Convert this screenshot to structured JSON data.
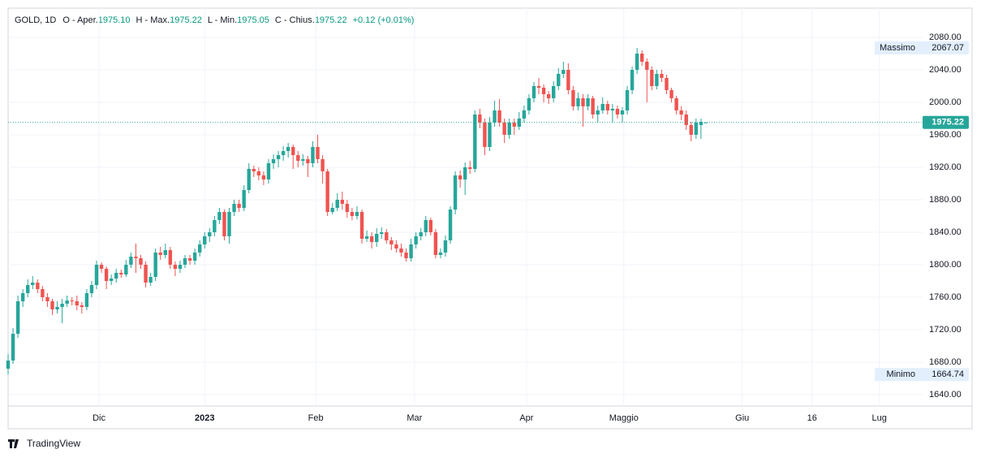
{
  "header": {
    "symbol": "GOLD, 1D",
    "open_label": "O - Aper.",
    "open": "1975.10",
    "high_label": "H - Max.",
    "high": "1975.22",
    "low_label": "L - Min.",
    "low": "1975.05",
    "close_label": "C - Chius.",
    "close": "1975.22",
    "change": "+0.12 (+0.01%)"
  },
  "footer": {
    "brand": "TradingView"
  },
  "chart_data": {
    "type": "candlestick",
    "up_color": "#26a69a",
    "down_color": "#ef5350",
    "xlim": [
      0,
      186.1
    ],
    "ylim": [
      1626,
      2116
    ],
    "xticks": [
      {
        "value": 18.5,
        "label": "Dic"
      },
      {
        "value": 40.0,
        "label": "2023"
      },
      {
        "value": 62.6,
        "label": "Feb"
      },
      {
        "value": 82.7,
        "label": "Mar"
      },
      {
        "value": 105.5,
        "label": "Apr"
      },
      {
        "value": 125.3,
        "label": "Maggio"
      },
      {
        "value": 149.4,
        "label": "Giu"
      },
      {
        "value": 163.6,
        "label": "16"
      },
      {
        "value": 177.3,
        "label": "Lug"
      }
    ],
    "yticks": [
      {
        "value": 1640,
        "label": "1640.00"
      },
      {
        "value": 1680,
        "label": "1680.00"
      },
      {
        "value": 1720,
        "label": "1720.00"
      },
      {
        "value": 1760,
        "label": "1760.00"
      },
      {
        "value": 1800,
        "label": "1800.00"
      },
      {
        "value": 1840,
        "label": "1840.00"
      },
      {
        "value": 1880,
        "label": "1880.00"
      },
      {
        "value": 1920,
        "label": "1920.00"
      },
      {
        "value": 1960,
        "label": "1960.00"
      },
      {
        "value": 2000,
        "label": "2000.00"
      },
      {
        "value": 2040,
        "label": "2040.00"
      },
      {
        "value": 2080,
        "label": "2080.00"
      }
    ],
    "grid": true,
    "high_marker": {
      "label": "Massimo",
      "value": "2067.07"
    },
    "low_marker": {
      "label": "Minimo",
      "value": "1664.74"
    },
    "last_price": "1975.22",
    "ohlc": [
      [
        1672,
        1690,
        1664.74,
        1682
      ],
      [
        1682,
        1722,
        1678,
        1715
      ],
      [
        1715,
        1762,
        1710,
        1755
      ],
      [
        1755,
        1770,
        1748,
        1765
      ],
      [
        1765,
        1782,
        1760,
        1775
      ],
      [
        1775,
        1786,
        1770,
        1778
      ],
      [
        1778,
        1782,
        1765,
        1770
      ],
      [
        1770,
        1774,
        1755,
        1760
      ],
      [
        1760,
        1765,
        1748,
        1755
      ],
      [
        1755,
        1758,
        1738,
        1745
      ],
      [
        1745,
        1755,
        1740,
        1748
      ],
      [
        1748,
        1758,
        1728,
        1752
      ],
      [
        1752,
        1762,
        1748,
        1756
      ],
      [
        1756,
        1760,
        1750,
        1755
      ],
      [
        1755,
        1762,
        1744,
        1750
      ],
      [
        1750,
        1754,
        1740,
        1748
      ],
      [
        1748,
        1770,
        1744,
        1765
      ],
      [
        1765,
        1780,
        1760,
        1775
      ],
      [
        1775,
        1805,
        1770,
        1800
      ],
      [
        1800,
        1803,
        1790,
        1795
      ],
      [
        1795,
        1798,
        1770,
        1780
      ],
      [
        1780,
        1788,
        1775,
        1783
      ],
      [
        1783,
        1795,
        1778,
        1790
      ],
      [
        1790,
        1794,
        1784,
        1788
      ],
      [
        1788,
        1806,
        1785,
        1800
      ],
      [
        1800,
        1815,
        1796,
        1810
      ],
      [
        1810,
        1826,
        1790,
        1808
      ],
      [
        1808,
        1812,
        1795,
        1800
      ],
      [
        1800,
        1804,
        1772,
        1778
      ],
      [
        1778,
        1790,
        1774,
        1785
      ],
      [
        1785,
        1820,
        1780,
        1815
      ],
      [
        1815,
        1822,
        1806,
        1812
      ],
      [
        1812,
        1826,
        1808,
        1818
      ],
      [
        1818,
        1822,
        1795,
        1800
      ],
      [
        1800,
        1804,
        1786,
        1795
      ],
      [
        1795,
        1805,
        1790,
        1800
      ],
      [
        1800,
        1812,
        1796,
        1808
      ],
      [
        1808,
        1812,
        1800,
        1805
      ],
      [
        1805,
        1820,
        1800,
        1815
      ],
      [
        1815,
        1830,
        1810,
        1825
      ],
      [
        1825,
        1840,
        1820,
        1835
      ],
      [
        1835,
        1845,
        1828,
        1840
      ],
      [
        1840,
        1860,
        1835,
        1855
      ],
      [
        1855,
        1870,
        1850,
        1865
      ],
      [
        1865,
        1868,
        1830,
        1835
      ],
      [
        1835,
        1870,
        1826,
        1865
      ],
      [
        1865,
        1880,
        1860,
        1875
      ],
      [
        1875,
        1880,
        1865,
        1870
      ],
      [
        1870,
        1898,
        1866,
        1892
      ],
      [
        1892,
        1925,
        1888,
        1918
      ],
      [
        1918,
        1922,
        1908,
        1915
      ],
      [
        1915,
        1920,
        1904,
        1910
      ],
      [
        1910,
        1915,
        1898,
        1905
      ],
      [
        1905,
        1930,
        1900,
        1925
      ],
      [
        1925,
        1936,
        1918,
        1930
      ],
      [
        1930,
        1940,
        1920,
        1935
      ],
      [
        1935,
        1946,
        1928,
        1940
      ],
      [
        1940,
        1950,
        1932,
        1945
      ],
      [
        1945,
        1948,
        1918,
        1935
      ],
      [
        1935,
        1940,
        1920,
        1928
      ],
      [
        1928,
        1936,
        1922,
        1930
      ],
      [
        1930,
        1934,
        1908,
        1925
      ],
      [
        1925,
        1952,
        1920,
        1945
      ],
      [
        1945,
        1960,
        1925,
        1930
      ],
      [
        1930,
        1935,
        1900,
        1915
      ],
      [
        1915,
        1918,
        1860,
        1865
      ],
      [
        1865,
        1876,
        1862,
        1870
      ],
      [
        1870,
        1888,
        1866,
        1880
      ],
      [
        1880,
        1890,
        1868,
        1875
      ],
      [
        1875,
        1880,
        1858,
        1865
      ],
      [
        1865,
        1870,
        1855,
        1860
      ],
      [
        1860,
        1872,
        1856,
        1865
      ],
      [
        1865,
        1868,
        1826,
        1832
      ],
      [
        1832,
        1842,
        1828,
        1835
      ],
      [
        1835,
        1840,
        1820,
        1828
      ],
      [
        1828,
        1845,
        1822,
        1838
      ],
      [
        1838,
        1846,
        1832,
        1840
      ],
      [
        1840,
        1844,
        1826,
        1830
      ],
      [
        1830,
        1834,
        1818,
        1825
      ],
      [
        1825,
        1830,
        1815,
        1820
      ],
      [
        1820,
        1826,
        1810,
        1815
      ],
      [
        1815,
        1820,
        1804,
        1808
      ],
      [
        1808,
        1832,
        1804,
        1825
      ],
      [
        1825,
        1840,
        1820,
        1835
      ],
      [
        1835,
        1845,
        1830,
        1840
      ],
      [
        1840,
        1860,
        1835,
        1855
      ],
      [
        1855,
        1858,
        1836,
        1840
      ],
      [
        1840,
        1844,
        1808,
        1812
      ],
      [
        1812,
        1820,
        1808,
        1815
      ],
      [
        1815,
        1836,
        1810,
        1830
      ],
      [
        1830,
        1872,
        1826,
        1868
      ],
      [
        1868,
        1915,
        1862,
        1910
      ],
      [
        1910,
        1916,
        1895,
        1905
      ],
      [
        1905,
        1926,
        1886,
        1920
      ],
      [
        1920,
        1928,
        1912,
        1918
      ],
      [
        1918,
        1990,
        1914,
        1985
      ],
      [
        1985,
        1992,
        1968,
        1975
      ],
      [
        1975,
        1980,
        1935,
        1945
      ],
      [
        1945,
        1982,
        1940,
        1975
      ],
      [
        1975,
        2002,
        1970,
        1990
      ],
      [
        1990,
        2004,
        1970,
        1975
      ],
      [
        1975,
        1980,
        1950,
        1960
      ],
      [
        1960,
        1980,
        1955,
        1975
      ],
      [
        1975,
        1980,
        1960,
        1970
      ],
      [
        1970,
        1988,
        1966,
        1980
      ],
      [
        1980,
        1996,
        1975,
        1990
      ],
      [
        1990,
        2010,
        1985,
        2005
      ],
      [
        2005,
        2025,
        2000,
        2020
      ],
      [
        2020,
        2030,
        2010,
        2018
      ],
      [
        2018,
        2022,
        2000,
        2010
      ],
      [
        2010,
        2014,
        1998,
        2005
      ],
      [
        2005,
        2026,
        2000,
        2020
      ],
      [
        2020,
        2042,
        2015,
        2035
      ],
      [
        2035,
        2050,
        2030,
        2040
      ],
      [
        2040,
        2048,
        2010,
        2015
      ],
      [
        2015,
        2020,
        1990,
        1995
      ],
      [
        1995,
        2012,
        1990,
        2005
      ],
      [
        2005,
        2010,
        1970,
        1995
      ],
      [
        1995,
        2010,
        1990,
        2005
      ],
      [
        2005,
        2008,
        1980,
        1985
      ],
      [
        1985,
        1996,
        1975,
        1990
      ],
      [
        1990,
        2006,
        1986,
        1998
      ],
      [
        1998,
        2002,
        1985,
        1990
      ],
      [
        1990,
        1998,
        1975,
        1992
      ],
      [
        1992,
        1996,
        1980,
        1985
      ],
      [
        1985,
        1994,
        1975,
        1990
      ],
      [
        1990,
        2020,
        1985,
        2015
      ],
      [
        2015,
        2044,
        2010,
        2040
      ],
      [
        2040,
        2067.07,
        2035,
        2060
      ],
      [
        2060,
        2064,
        2045,
        2050
      ],
      [
        2050,
        2054,
        2000,
        2040
      ],
      [
        2040,
        2044,
        2015,
        2020
      ],
      [
        2020,
        2040,
        2016,
        2035
      ],
      [
        2035,
        2040,
        2025,
        2030
      ],
      [
        2030,
        2034,
        2010,
        2015
      ],
      [
        2015,
        2018,
        2000,
        2005
      ],
      [
        2005,
        2008,
        1985,
        1990
      ],
      [
        1990,
        1995,
        1978,
        1985
      ],
      [
        1985,
        1990,
        1966,
        1972
      ],
      [
        1972,
        1976,
        1952,
        1960
      ],
      [
        1960,
        1980,
        1955,
        1975
      ],
      [
        1972,
        1980,
        1955,
        1976
      ],
      [
        1975.1,
        1975.22,
        1975.05,
        1975.22
      ]
    ]
  }
}
